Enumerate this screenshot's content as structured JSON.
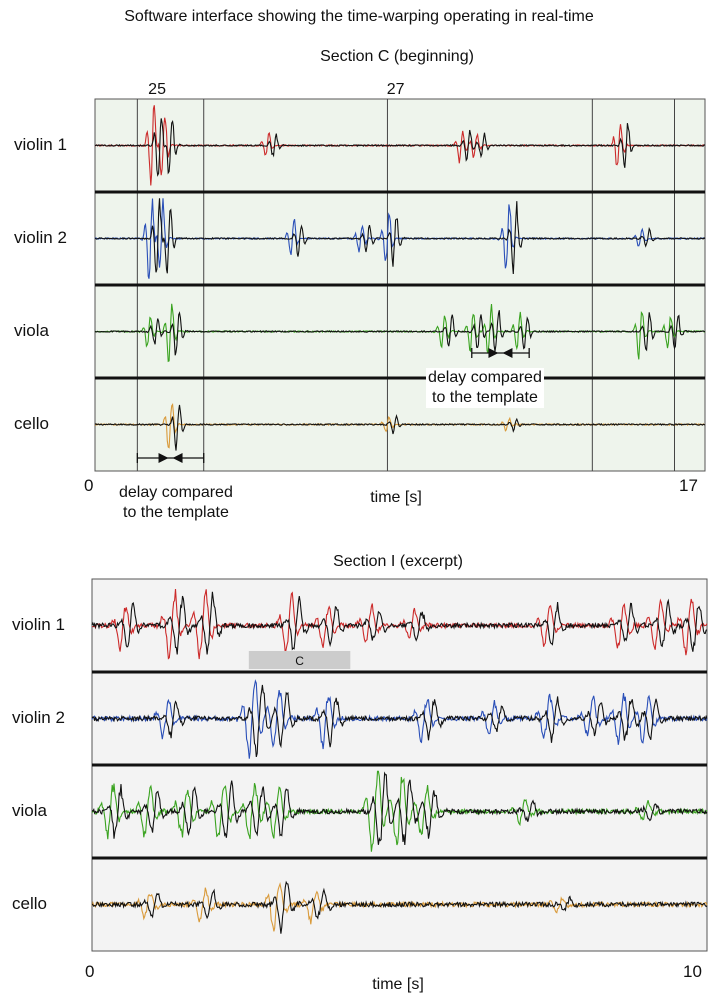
{
  "page_title": "Software interface showing the time-warping operating in real-time",
  "colors": {
    "violin 1": "#cc2a2a",
    "violin 2": "#2a4fb8",
    "viola": "#3aa320",
    "cello": "#d99a3a",
    "performance": "#111111",
    "panel_top": "#eef4ec",
    "panel_bottom": "#f3f3f3",
    "section_bar": "#cccccc"
  },
  "chart_data": [
    {
      "type": "line",
      "title": "Section C (beginning)",
      "xlabel": "time [s]",
      "x_range": [
        0,
        17
      ],
      "x_ticks": [
        "0",
        "17"
      ],
      "measure_labels": [
        "25",
        "27"
      ],
      "grid_times": [
        1.18,
        3.03,
        8.15,
        13.86,
        16.15
      ],
      "measure_label_times": [
        1.73,
        8.38
      ],
      "rows": [
        "violin 1",
        "violin 2",
        "viola",
        "cello"
      ],
      "series": [
        {
          "name": "violin 1",
          "events": [
            [
              1.6,
              1.3
            ],
            [
              1.9,
              1.1
            ],
            [
              4.8,
              0.4
            ],
            [
              10.2,
              0.5
            ],
            [
              10.6,
              0.4
            ],
            [
              14.6,
              0.8
            ]
          ]
        },
        {
          "name": "violin 2",
          "events": [
            [
              1.55,
              1.4
            ],
            [
              1.85,
              1.2
            ],
            [
              5.5,
              0.6
            ],
            [
              7.4,
              0.5
            ],
            [
              8.15,
              0.9
            ],
            [
              11.5,
              1.2
            ],
            [
              15.2,
              0.3
            ]
          ]
        },
        {
          "name": "viola",
          "events": [
            [
              1.5,
              0.5
            ],
            [
              2.1,
              0.9
            ],
            [
              9.7,
              0.6
            ],
            [
              10.5,
              0.7
            ],
            [
              11.0,
              0.8
            ],
            [
              11.8,
              0.6
            ],
            [
              15.2,
              0.8
            ],
            [
              16.0,
              0.6
            ]
          ]
        },
        {
          "name": "cello",
          "events": [
            [
              2.1,
              0.9
            ],
            [
              8.15,
              0.3
            ],
            [
              11.5,
              0.2
            ]
          ]
        }
      ],
      "annotations": [
        {
          "text_lines": [
            "delay compared",
            "to the template"
          ],
          "arrow_from": 1.18,
          "arrow_to": 3.03
        },
        {
          "text_lines": [
            "delay compared",
            "to the template"
          ],
          "arrow_from": 10.5,
          "arrow_to": 12.1
        }
      ]
    },
    {
      "type": "line",
      "title": "Section I (excerpt)",
      "xlabel": "time [s]",
      "x_range": [
        0,
        10
      ],
      "x_ticks": [
        "0",
        "10"
      ],
      "section_marker": {
        "label": "C",
        "start": 2.55,
        "end": 4.2
      },
      "rows": [
        "violin 1",
        "violin 2",
        "viola",
        "cello"
      ],
      "series": [
        {
          "name": "violin 1",
          "events": [
            [
              0.5,
              0.7
            ],
            [
              1.3,
              1.0
            ],
            [
              1.8,
              1.1
            ],
            [
              3.2,
              0.9
            ],
            [
              3.8,
              0.7
            ],
            [
              4.5,
              0.6
            ],
            [
              5.2,
              0.5
            ],
            [
              7.4,
              0.7
            ],
            [
              8.6,
              0.7
            ],
            [
              9.2,
              0.8
            ],
            [
              9.7,
              0.9
            ]
          ]
        },
        {
          "name": "violin 2",
          "events": [
            [
              1.2,
              0.6
            ],
            [
              2.6,
              1.3
            ],
            [
              3.0,
              1.0
            ],
            [
              3.8,
              0.9
            ],
            [
              5.4,
              0.7
            ],
            [
              6.5,
              0.5
            ],
            [
              7.4,
              0.7
            ],
            [
              8.1,
              0.6
            ],
            [
              8.6,
              0.8
            ],
            [
              9.0,
              0.7
            ]
          ]
        },
        {
          "name": "viola",
          "events": [
            [
              0.3,
              0.9
            ],
            [
              0.9,
              0.8
            ],
            [
              1.5,
              0.9
            ],
            [
              2.1,
              1.0
            ],
            [
              2.6,
              0.9
            ],
            [
              3.0,
              0.8
            ],
            [
              4.6,
              1.4
            ],
            [
              5.0,
              1.2
            ],
            [
              5.4,
              0.8
            ],
            [
              7.0,
              0.4
            ],
            [
              9.0,
              0.3
            ]
          ]
        },
        {
          "name": "cello",
          "events": [
            [
              0.9,
              0.4
            ],
            [
              1.8,
              0.5
            ],
            [
              3.0,
              0.9
            ],
            [
              3.6,
              0.5
            ],
            [
              7.6,
              0.2
            ]
          ]
        }
      ]
    }
  ]
}
